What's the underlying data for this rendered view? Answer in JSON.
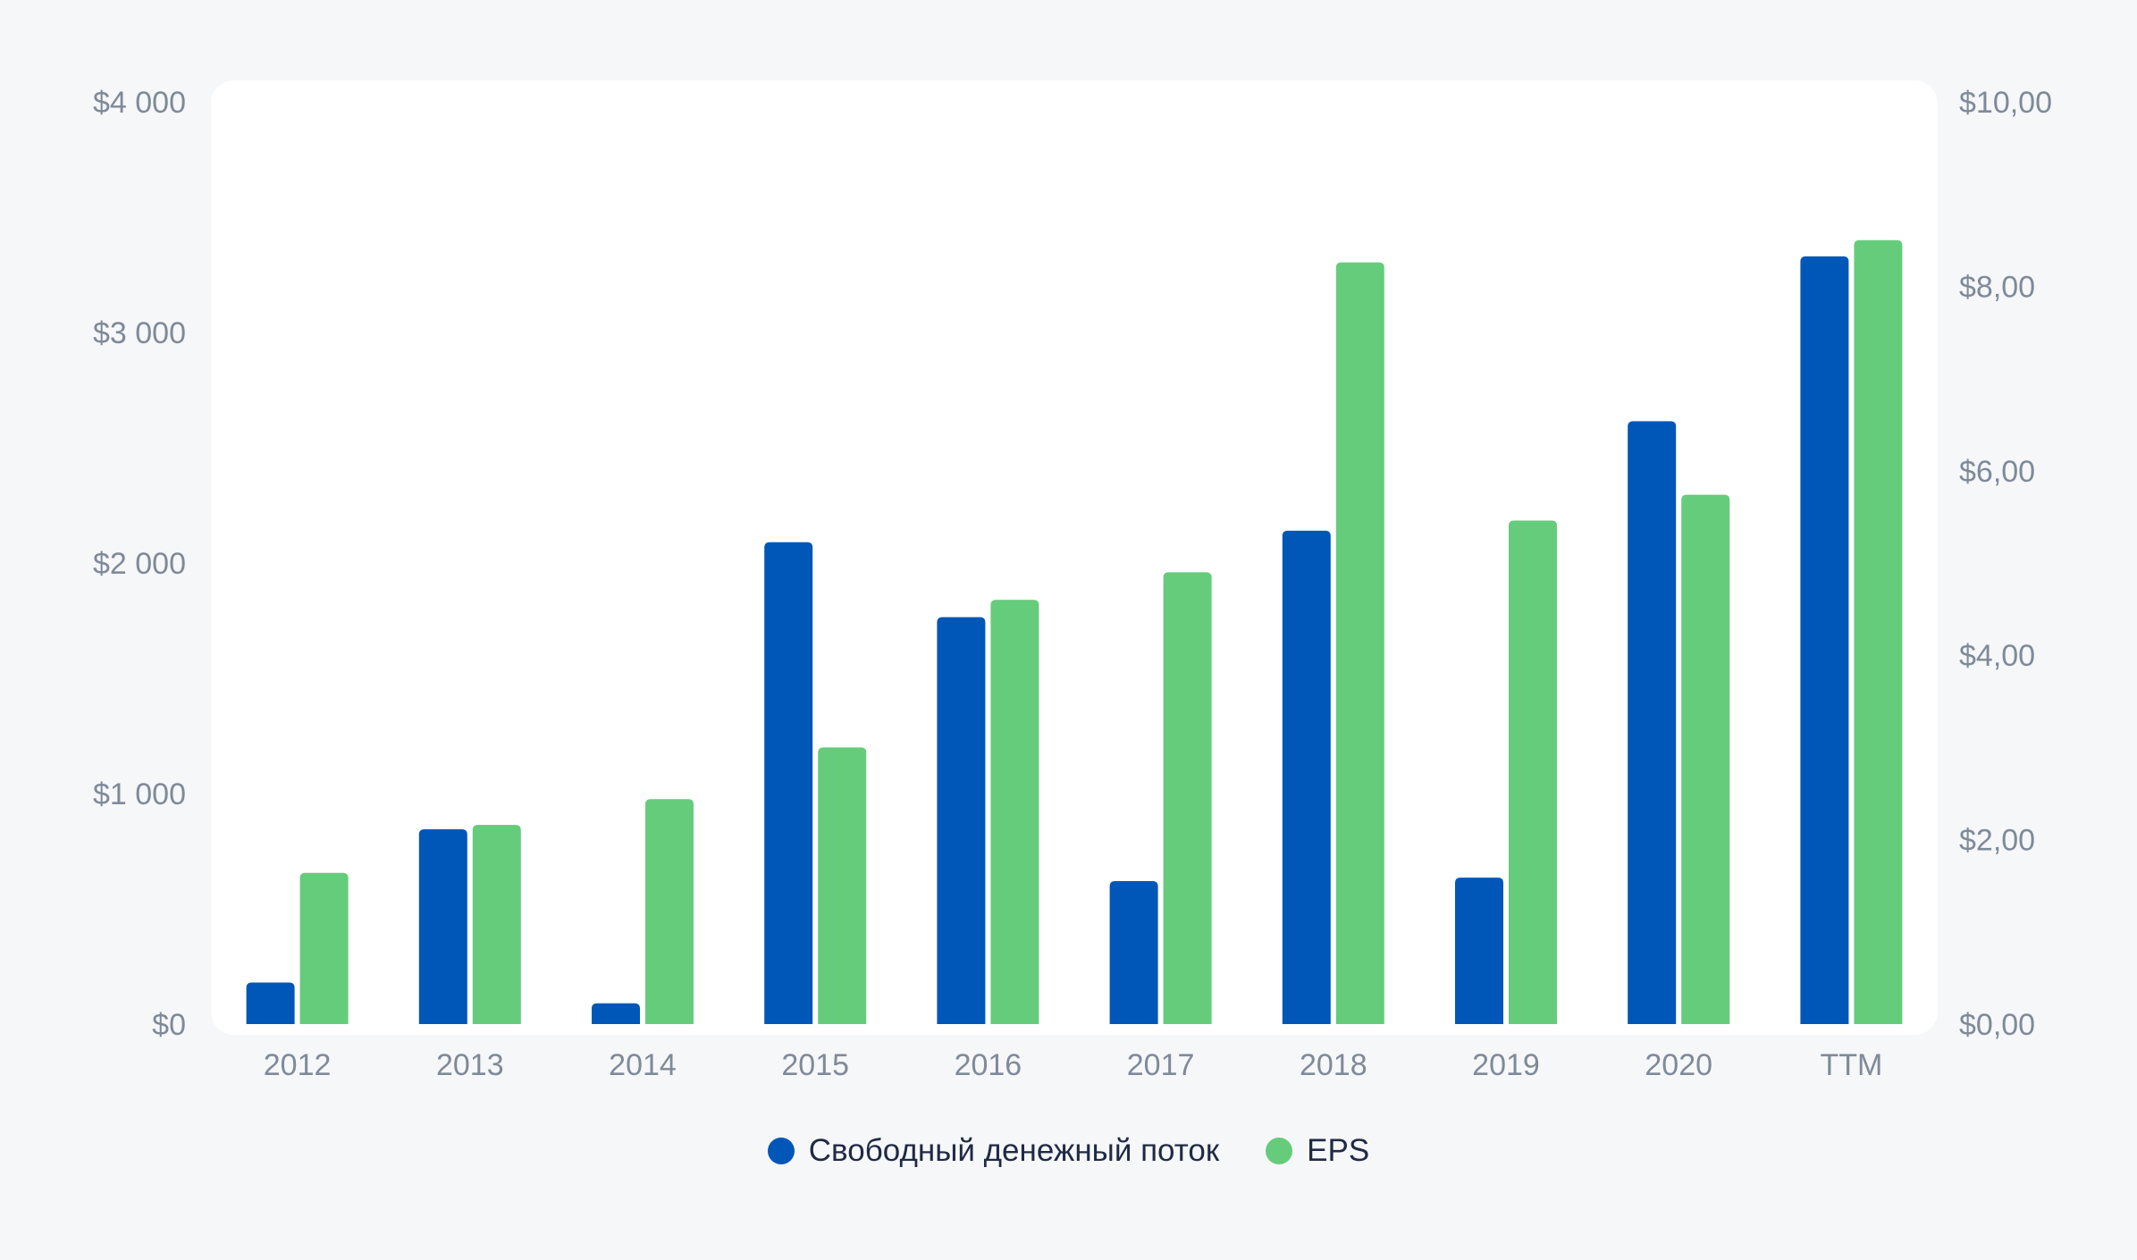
{
  "chart_data": {
    "type": "bar",
    "categories": [
      "2012",
      "2013",
      "2014",
      "2015",
      "2016",
      "2017",
      "2018",
      "2019",
      "2020",
      "TTM"
    ],
    "series": [
      {
        "name": "Свободный денежный поток",
        "axis": "left",
        "color": "#0057b8",
        "values": [
          180,
          845,
          90,
          2090,
          1765,
          620,
          2140,
          635,
          2615,
          3330
        ]
      },
      {
        "name": "EPS",
        "axis": "right",
        "color": "#65cc7c",
        "values": [
          1.64,
          2.16,
          2.44,
          3.0,
          4.6,
          4.9,
          8.26,
          5.46,
          5.74,
          8.5
        ]
      }
    ],
    "y_left": {
      "range": [
        0,
        4000
      ],
      "ticks": [
        0,
        1000,
        2000,
        3000,
        4000
      ],
      "tick_labels": [
        "$0",
        "$1 000",
        "$2 000",
        "$3 000",
        "$4 000"
      ]
    },
    "y_right": {
      "range": [
        0,
        10
      ],
      "ticks": [
        0,
        2,
        4,
        6,
        8,
        10
      ],
      "tick_labels": [
        "$0,00",
        "$2,00",
        "$4,00",
        "$6,00",
        "$8,00",
        "$10,00"
      ]
    },
    "grid": false,
    "legend": {
      "position": "bottom",
      "entries": [
        "Свободный денежный поток",
        "EPS"
      ]
    }
  }
}
